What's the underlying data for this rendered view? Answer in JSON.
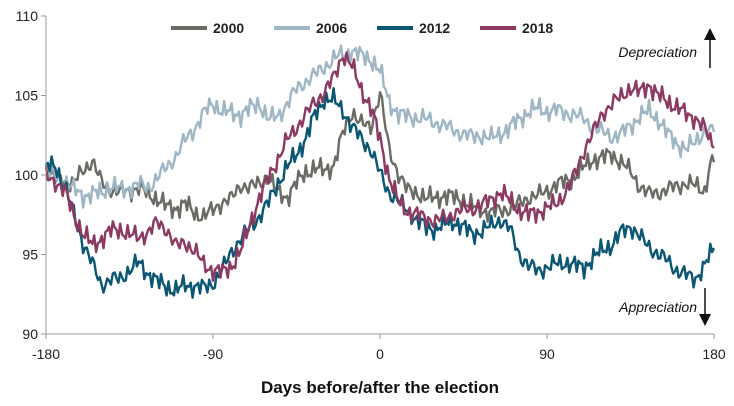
{
  "chart_data": {
    "type": "line",
    "title": "",
    "xlabel": "Days before/after the election",
    "ylabel": "",
    "xlim": [
      -180,
      180
    ],
    "ylim": [
      90,
      110
    ],
    "xticks": [
      -180,
      -90,
      0,
      90,
      180
    ],
    "yticks": [
      90,
      95,
      100,
      105,
      110
    ],
    "grid": false,
    "legend_position": "top",
    "annotations": {
      "depreciation": "Depreciation",
      "appreciation": "Appreciation"
    },
    "series": [
      {
        "name": "2000",
        "color": "#6b6b66",
        "x": [
          -180,
          -175,
          -170,
          -165,
          -160,
          -155,
          -150,
          -145,
          -140,
          -135,
          -130,
          -125,
          -120,
          -115,
          -110,
          -105,
          -100,
          -95,
          -90,
          -85,
          -80,
          -75,
          -70,
          -65,
          -60,
          -55,
          -50,
          -45,
          -40,
          -35,
          -30,
          -25,
          -20,
          -15,
          -10,
          -5,
          0,
          5,
          10,
          15,
          20,
          25,
          30,
          35,
          40,
          45,
          50,
          55,
          60,
          65,
          70,
          75,
          80,
          85,
          90,
          95,
          100,
          105,
          110,
          115,
          120,
          125,
          130,
          135,
          140,
          145,
          150,
          155,
          160,
          165,
          170,
          175,
          178,
          180
        ],
        "values": [
          100.3,
          99.8,
          99.6,
          99.5,
          100.3,
          100.9,
          99.5,
          99.1,
          98.9,
          99.0,
          99.2,
          98.8,
          98.5,
          98.0,
          97.9,
          98.2,
          97.6,
          97.4,
          97.8,
          98.3,
          98.5,
          99.4,
          99.2,
          99.5,
          99.8,
          98.9,
          98.6,
          99.5,
          100.2,
          100.4,
          100.3,
          100.6,
          102.6,
          104.0,
          103.2,
          103.0,
          105.2,
          101.5,
          100.1,
          99.0,
          98.9,
          98.5,
          98.6,
          98.7,
          98.6,
          98.4,
          98.0,
          97.8,
          97.6,
          97.8,
          97.9,
          98.2,
          98.6,
          98.7,
          99.0,
          99.4,
          99.6,
          99.9,
          100.5,
          101.0,
          101.1,
          101.3,
          100.8,
          100.2,
          99.3,
          98.8,
          98.9,
          99.1,
          99.3,
          99.5,
          99.3,
          99.0,
          100.7,
          100.8
        ]
      },
      {
        "name": "2006",
        "color": "#9fb6c4",
        "x": [
          -180,
          -175,
          -170,
          -165,
          -160,
          -155,
          -150,
          -145,
          -140,
          -135,
          -130,
          -125,
          -120,
          -115,
          -110,
          -105,
          -100,
          -95,
          -90,
          -85,
          -80,
          -75,
          -70,
          -65,
          -60,
          -55,
          -50,
          -45,
          -40,
          -35,
          -30,
          -25,
          -20,
          -15,
          -10,
          -5,
          0,
          5,
          10,
          15,
          20,
          25,
          30,
          35,
          40,
          45,
          50,
          55,
          60,
          65,
          70,
          75,
          80,
          85,
          90,
          95,
          100,
          105,
          110,
          115,
          120,
          125,
          130,
          135,
          140,
          145,
          150,
          155,
          160,
          165,
          170,
          175,
          180
        ],
        "values": [
          100.2,
          100.0,
          99.6,
          99.1,
          98.7,
          98.8,
          98.9,
          99.3,
          99.1,
          99.2,
          99.4,
          99.2,
          99.8,
          100.5,
          101.2,
          102.2,
          102.9,
          103.9,
          104.5,
          104.0,
          103.9,
          103.8,
          104.2,
          104.5,
          103.5,
          103.7,
          104.5,
          105.4,
          105.9,
          106.3,
          106.8,
          107.3,
          107.6,
          107.8,
          107.5,
          107.3,
          106.5,
          104.6,
          103.8,
          103.7,
          103.6,
          103.5,
          103.3,
          103.1,
          102.8,
          102.6,
          102.4,
          102.5,
          102.3,
          102.6,
          103.0,
          103.5,
          104.0,
          104.2,
          104.0,
          104.1,
          103.9,
          103.8,
          103.5,
          103.0,
          102.7,
          102.4,
          102.6,
          103.1,
          103.7,
          104.0,
          103.5,
          102.6,
          102.0,
          101.6,
          102.1,
          102.8,
          102.7
        ]
      },
      {
        "name": "2012",
        "color": "#0b5673",
        "x": [
          -180,
          -175,
          -170,
          -165,
          -160,
          -155,
          -150,
          -145,
          -140,
          -135,
          -130,
          -125,
          -120,
          -115,
          -110,
          -105,
          -100,
          -95,
          -90,
          -85,
          -80,
          -75,
          -70,
          -65,
          -60,
          -55,
          -50,
          -45,
          -40,
          -35,
          -30,
          -25,
          -20,
          -15,
          -10,
          -5,
          0,
          5,
          10,
          15,
          20,
          25,
          30,
          35,
          40,
          45,
          50,
          55,
          60,
          65,
          70,
          75,
          80,
          85,
          90,
          95,
          100,
          105,
          110,
          115,
          120,
          125,
          130,
          135,
          140,
          145,
          150,
          155,
          160,
          165,
          170,
          175,
          180
        ],
        "values": [
          100.5,
          100.6,
          99.3,
          97.6,
          95.7,
          94.4,
          93.1,
          93.4,
          93.5,
          94.0,
          94.5,
          93.8,
          93.3,
          93.0,
          92.7,
          93.1,
          93.0,
          92.9,
          93.2,
          94.0,
          95.2,
          96.0,
          96.7,
          97.4,
          98.3,
          99.5,
          100.5,
          101.3,
          102.3,
          103.8,
          104.8,
          104.7,
          104.1,
          103.0,
          102.3,
          101.6,
          100.1,
          98.9,
          98.3,
          97.8,
          97.1,
          96.7,
          96.6,
          96.9,
          97.1,
          96.7,
          96.3,
          96.5,
          96.8,
          97.2,
          96.6,
          95.0,
          94.3,
          94.0,
          94.2,
          94.4,
          94.5,
          94.3,
          94.2,
          94.8,
          95.3,
          95.6,
          96.4,
          96.8,
          96.1,
          95.5,
          95.0,
          94.6,
          94.0,
          93.7,
          93.5,
          94.3,
          95.4
        ]
      },
      {
        "name": "2018",
        "color": "#8c3a62",
        "x": [
          -180,
          -175,
          -170,
          -165,
          -160,
          -155,
          -150,
          -145,
          -140,
          -135,
          -130,
          -125,
          -120,
          -115,
          -110,
          -105,
          -100,
          -95,
          -90,
          -85,
          -80,
          -75,
          -70,
          -65,
          -60,
          -55,
          -50,
          -45,
          -40,
          -35,
          -30,
          -25,
          -20,
          -15,
          -10,
          -5,
          0,
          5,
          10,
          15,
          20,
          25,
          30,
          35,
          40,
          45,
          50,
          55,
          60,
          65,
          70,
          75,
          80,
          85,
          90,
          95,
          100,
          105,
          110,
          115,
          120,
          125,
          130,
          135,
          140,
          145,
          150,
          155,
          160,
          165,
          170,
          175,
          180
        ],
        "values": [
          99.9,
          99.6,
          99.0,
          97.5,
          96.3,
          95.6,
          96.0,
          96.5,
          96.6,
          96.2,
          96.1,
          96.4,
          97.0,
          96.6,
          95.5,
          95.8,
          95.2,
          94.4,
          94.0,
          93.9,
          94.3,
          95.2,
          97.0,
          98.5,
          99.9,
          101.0,
          102.2,
          103.0,
          103.8,
          104.6,
          105.2,
          106.1,
          107.6,
          106.8,
          105.4,
          104.2,
          102.3,
          99.8,
          98.3,
          97.7,
          97.5,
          97.3,
          97.1,
          97.3,
          97.6,
          97.8,
          97.9,
          98.1,
          98.5,
          98.9,
          98.4,
          97.8,
          97.5,
          97.7,
          97.9,
          98.2,
          98.9,
          100.0,
          101.6,
          102.7,
          103.9,
          104.5,
          104.9,
          105.5,
          105.2,
          105.7,
          105.0,
          104.6,
          104.3,
          103.8,
          103.6,
          102.9,
          101.7
        ]
      }
    ]
  }
}
